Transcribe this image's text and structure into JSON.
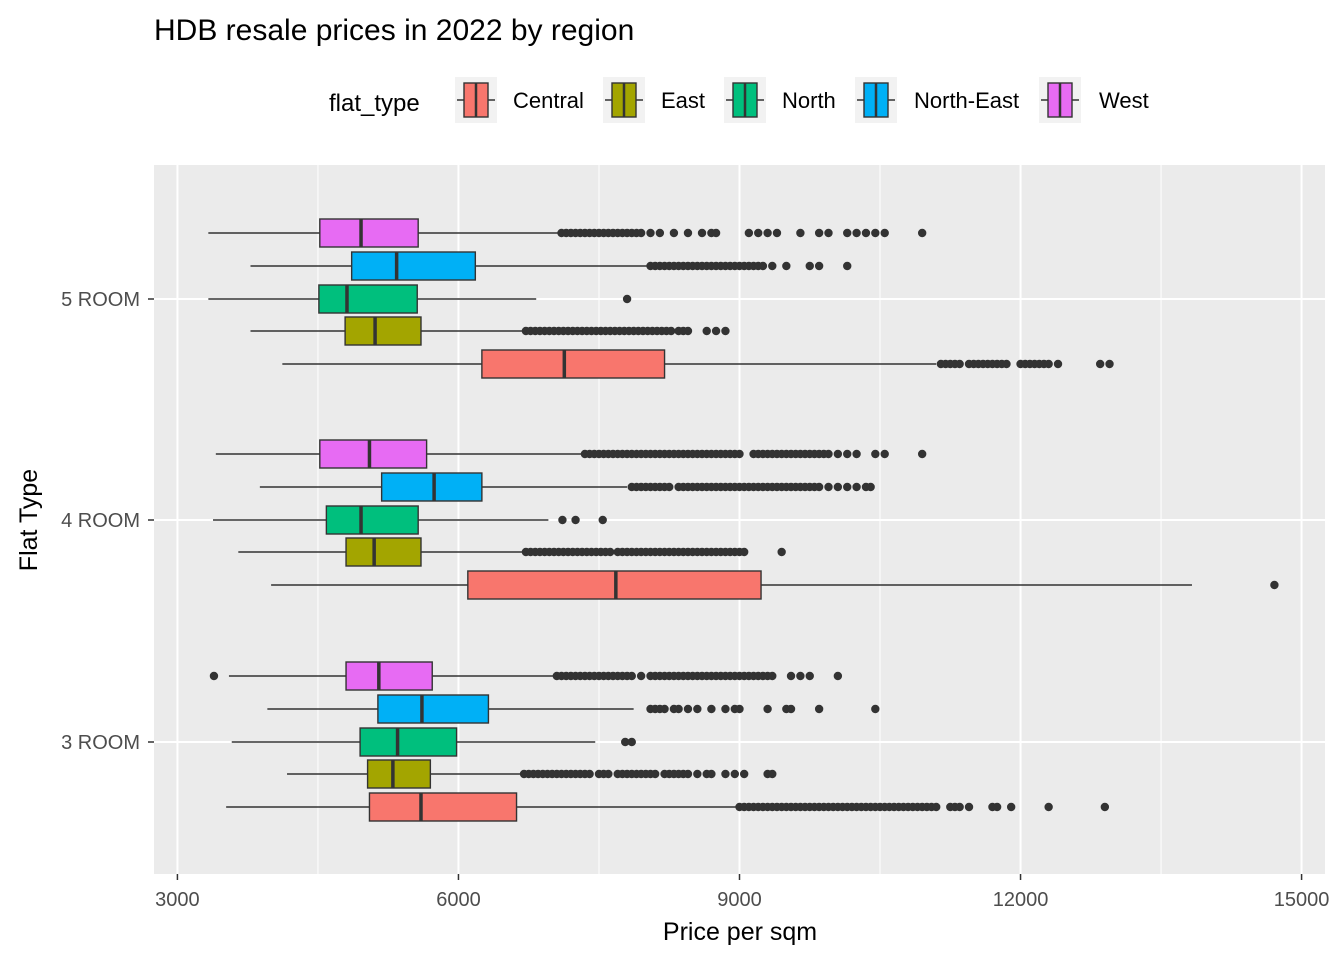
{
  "chart_data": {
    "type": "boxplot",
    "orientation": "horizontal",
    "title": "HDB resale prices in 2022 by region",
    "xlabel": "Price per sqm",
    "ylabel": "Flat Type",
    "xlim": [
      2750,
      15250
    ],
    "x_ticks": [
      3000,
      6000,
      9000,
      12000,
      15000
    ],
    "categories": [
      "3 ROOM",
      "4 ROOM",
      "5 ROOM"
    ],
    "legend": {
      "title": "flat_type",
      "position": "top"
    },
    "grid": true,
    "series": [
      {
        "name": "Central",
        "color": "#F8766D",
        "boxes": [
          {
            "category": "3 ROOM",
            "min": 3520,
            "q1": 5050,
            "median": 5600,
            "q3": 6620,
            "max": 8990,
            "outliers": [
              9000,
              9050,
              9100,
              9150,
              9200,
              9250,
              9300,
              9350,
              9400,
              9450,
              9500,
              9550,
              9600,
              9650,
              9700,
              9750,
              9800,
              9850,
              9900,
              9950,
              10000,
              10050,
              10100,
              10150,
              10200,
              10250,
              10300,
              10350,
              10400,
              10450,
              10500,
              10550,
              10600,
              10650,
              10700,
              10750,
              10800,
              10850,
              10900,
              10950,
              11000,
              11050,
              11100,
              11250,
              11300,
              11350,
              11450,
              11700,
              11750,
              11900,
              12300,
              12900
            ]
          },
          {
            "category": "4 ROOM",
            "min": 4000,
            "q1": 6100,
            "median": 7680,
            "q3": 9230,
            "max": 13830,
            "outliers": [
              14710
            ]
          },
          {
            "category": "5 ROOM",
            "min": 4120,
            "q1": 6250,
            "median": 7130,
            "q3": 8200,
            "max": 11100,
            "outliers": [
              11150,
              11200,
              11250,
              11300,
              11350,
              11450,
              11500,
              11550,
              11600,
              11650,
              11700,
              11750,
              11800,
              11850,
              12000,
              12050,
              12100,
              12150,
              12200,
              12250,
              12300,
              12400,
              12850,
              12950
            ]
          }
        ]
      },
      {
        "name": "East",
        "color": "#A3A500",
        "boxes": [
          {
            "category": "3 ROOM",
            "min": 4170,
            "q1": 5030,
            "median": 5300,
            "q3": 5700,
            "max": 6680,
            "outliers": [
              6700,
              6750,
              6800,
              6850,
              6900,
              6950,
              7000,
              7050,
              7100,
              7150,
              7200,
              7250,
              7300,
              7350,
              7400,
              7500,
              7550,
              7600,
              7700,
              7750,
              7800,
              7850,
              7900,
              7950,
              8000,
              8050,
              8100,
              8200,
              8250,
              8300,
              8350,
              8400,
              8450,
              8550,
              8650,
              8700,
              8850,
              8950,
              9050,
              9300,
              9350
            ]
          },
          {
            "category": "4 ROOM",
            "min": 3650,
            "q1": 4800,
            "median": 5100,
            "q3": 5600,
            "max": 6690,
            "outliers": [
              6720,
              6770,
              6820,
              6870,
              6920,
              6970,
              7020,
              7070,
              7120,
              7170,
              7220,
              7270,
              7320,
              7370,
              7420,
              7470,
              7520,
              7570,
              7620,
              7700,
              7750,
              7800,
              7850,
              7900,
              7950,
              8000,
              8050,
              8100,
              8150,
              8200,
              8250,
              8300,
              8350,
              8400,
              8450,
              8500,
              8550,
              8600,
              8650,
              8700,
              8750,
              8800,
              8850,
              8900,
              8950,
              9000,
              9050,
              9450
            ]
          },
          {
            "category": "5 ROOM",
            "min": 3780,
            "q1": 4790,
            "median": 5110,
            "q3": 5600,
            "max": 6690,
            "outliers": [
              6720,
              6770,
              6820,
              6870,
              6920,
              6970,
              7020,
              7070,
              7120,
              7170,
              7220,
              7270,
              7320,
              7370,
              7420,
              7470,
              7520,
              7570,
              7620,
              7670,
              7720,
              7770,
              7820,
              7870,
              7920,
              7970,
              8020,
              8070,
              8120,
              8170,
              8220,
              8270,
              8350,
              8400,
              8450,
              8650,
              8750,
              8850
            ]
          }
        ]
      },
      {
        "name": "North",
        "color": "#00BF7D",
        "boxes": [
          {
            "category": "3 ROOM",
            "min": 3580,
            "q1": 4950,
            "median": 5350,
            "q3": 5980,
            "max": 7460,
            "outliers": [
              7780,
              7850
            ]
          },
          {
            "category": "4 ROOM",
            "min": 3380,
            "q1": 4590,
            "median": 4960,
            "q3": 5570,
            "max": 6960,
            "outliers": [
              7110,
              7250,
              7540
            ]
          },
          {
            "category": "5 ROOM",
            "min": 3330,
            "q1": 4510,
            "median": 4810,
            "q3": 5560,
            "max": 6830,
            "outliers": [
              7800
            ]
          }
        ]
      },
      {
        "name": "North-East",
        "color": "#00B0F6",
        "boxes": [
          {
            "category": "3 ROOM",
            "min": 3960,
            "q1": 5140,
            "median": 5610,
            "q3": 6320,
            "max": 7870,
            "outliers": [
              8050,
              8100,
              8150,
              8200,
              8300,
              8350,
              8450,
              8550,
              8700,
              8850,
              8950,
              9000,
              9300,
              9500,
              9550,
              9850,
              10450
            ]
          },
          {
            "category": "4 ROOM",
            "min": 3880,
            "q1": 5180,
            "median": 5740,
            "q3": 6250,
            "max": 7800,
            "outliers": [
              7850,
              7900,
              7950,
              8000,
              8050,
              8100,
              8150,
              8200,
              8250,
              8350,
              8400,
              8450,
              8500,
              8550,
              8600,
              8650,
              8700,
              8750,
              8800,
              8850,
              8900,
              8950,
              9000,
              9050,
              9100,
              9150,
              9200,
              9250,
              9300,
              9350,
              9400,
              9450,
              9500,
              9550,
              9600,
              9650,
              9700,
              9750,
              9800,
              9850,
              9950,
              10050,
              10150,
              10250,
              10350,
              10400
            ]
          },
          {
            "category": "5 ROOM",
            "min": 3780,
            "q1": 4860,
            "median": 5340,
            "q3": 6180,
            "max": 8040,
            "outliers": [
              8050,
              8100,
              8150,
              8200,
              8250,
              8300,
              8350,
              8400,
              8450,
              8500,
              8550,
              8600,
              8650,
              8700,
              8750,
              8800,
              8850,
              8900,
              8950,
              9000,
              9050,
              9100,
              9150,
              9200,
              9250,
              9350,
              9500,
              9750,
              9850,
              10150
            ]
          }
        ]
      },
      {
        "name": "West",
        "color": "#E76BF3",
        "boxes": [
          {
            "category": "3 ROOM",
            "min": 3550,
            "q1": 4800,
            "median": 5150,
            "q3": 5720,
            "max": 7040,
            "outliers": [
              3390,
              7050,
              7100,
              7150,
              7200,
              7250,
              7300,
              7350,
              7400,
              7450,
              7500,
              7550,
              7600,
              7650,
              7700,
              7750,
              7800,
              7850,
              7950,
              8050,
              8100,
              8150,
              8200,
              8250,
              8300,
              8350,
              8400,
              8450,
              8500,
              8550,
              8600,
              8650,
              8700,
              8750,
              8800,
              8850,
              8900,
              8950,
              9000,
              9050,
              9100,
              9150,
              9200,
              9250,
              9300,
              9350,
              9550,
              9650,
              9750,
              10050
            ]
          },
          {
            "category": "4 ROOM",
            "min": 3410,
            "q1": 4520,
            "median": 5050,
            "q3": 5660,
            "max": 7310,
            "outliers": [
              7350,
              7400,
              7450,
              7500,
              7550,
              7600,
              7650,
              7700,
              7750,
              7800,
              7850,
              7900,
              7950,
              8000,
              8050,
              8100,
              8150,
              8200,
              8250,
              8300,
              8350,
              8400,
              8450,
              8500,
              8550,
              8600,
              8650,
              8700,
              8750,
              8800,
              8850,
              8900,
              8950,
              9000,
              9150,
              9200,
              9250,
              9300,
              9350,
              9400,
              9450,
              9500,
              9550,
              9600,
              9650,
              9700,
              9750,
              9800,
              9850,
              9900,
              9950,
              10050,
              10150,
              10250,
              10450,
              10550,
              10950
            ]
          },
          {
            "category": "5 ROOM",
            "min": 3330,
            "q1": 4520,
            "median": 4960,
            "q3": 5570,
            "max": 7070,
            "outliers": [
              7100,
              7150,
              7200,
              7250,
              7300,
              7350,
              7400,
              7450,
              7500,
              7550,
              7600,
              7650,
              7700,
              7750,
              7800,
              7850,
              7900,
              7950,
              8050,
              8150,
              8300,
              8450,
              8600,
              8700,
              8750,
              9100,
              9200,
              9300,
              9400,
              9650,
              9850,
              9950,
              10150,
              10250,
              10350,
              10450,
              10550,
              10950
            ]
          }
        ]
      }
    ]
  }
}
